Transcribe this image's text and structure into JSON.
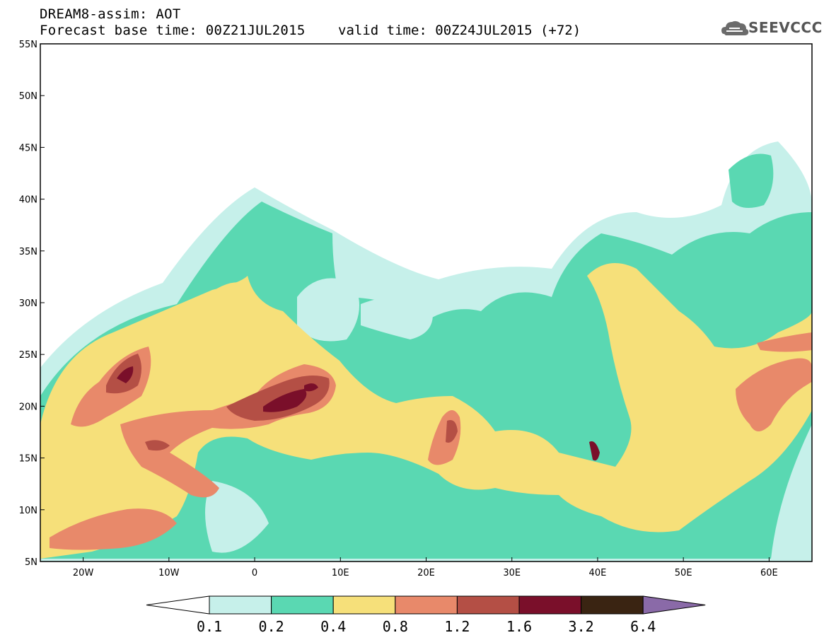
{
  "header": {
    "title": "DREAM8-assim: AOT",
    "base_time": "Forecast base time: 00Z21JUL2015",
    "valid_time": "valid time: 00Z24JUL2015 (+72)"
  },
  "logo": {
    "text": "SEEVCCC",
    "icon": "cloud-icon"
  },
  "map": {
    "region": "North Africa, Mediterranean, Middle East",
    "lat_range": [
      5,
      55
    ],
    "lon_range": [
      -25,
      65
    ],
    "lat_labels": [
      "55N",
      "50N",
      "45N",
      "40N",
      "35N",
      "30N",
      "25N",
      "20N",
      "15N",
      "10N",
      "5N"
    ],
    "lon_labels": [
      "20W",
      "10W",
      "0",
      "10E",
      "20E",
      "30E",
      "40E",
      "50E",
      "60E"
    ]
  },
  "colorbar": {
    "labels": [
      "0.1",
      "0.2",
      "0.4",
      "0.8",
      "1.2",
      "1.6",
      "3.2",
      "6.4"
    ],
    "colors": [
      "#c6f0ea",
      "#5ad8b2",
      "#f6e07a",
      "#e8896a",
      "#b44f45",
      "#7a0f2a",
      "#3a2412",
      "#8a6aa8"
    ]
  }
}
